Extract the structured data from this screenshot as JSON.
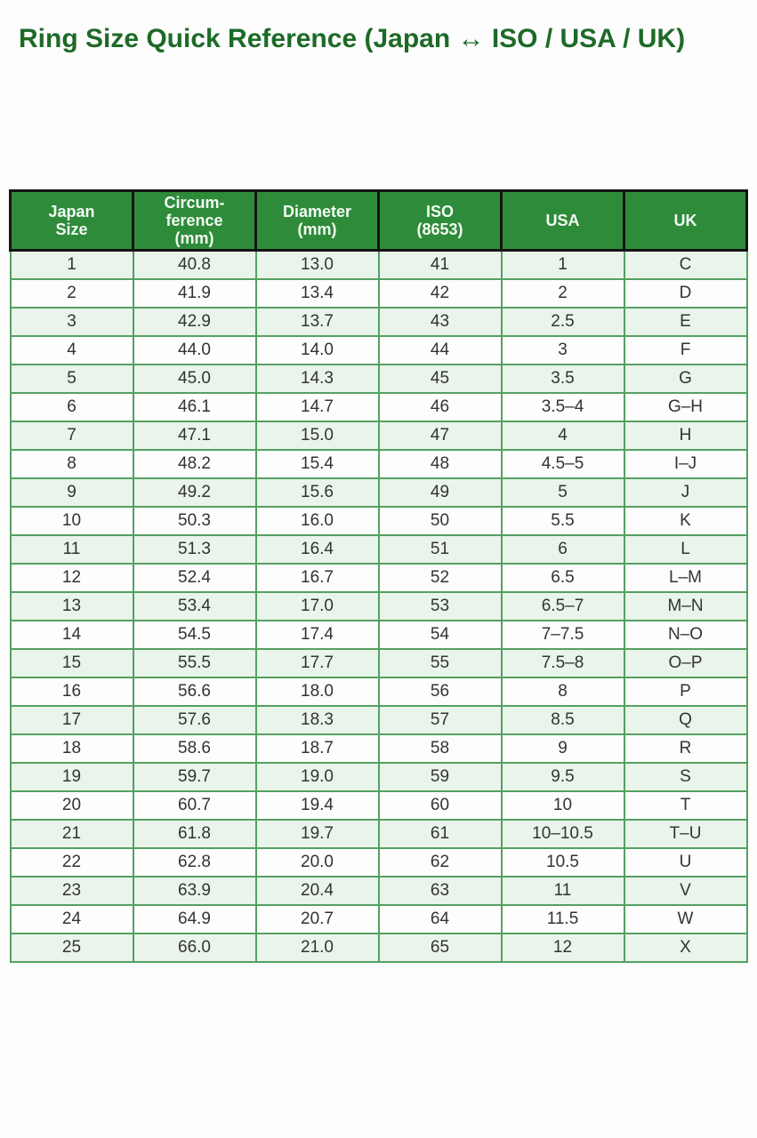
{
  "page": {
    "title": "Ring Size Quick Reference (Japan ↔ ISO / USA / UK)"
  },
  "colors": {
    "title_text": "#1d6a27",
    "header_bg": "#2e8b3a",
    "header_text": "#f3faf3",
    "header_border": "#141414",
    "row_alt_bg": "#e9f4ea",
    "row_bg": "#fdfdfd",
    "body_border": "#55a061",
    "cell_text": "#333333",
    "page_bg": "#fdfdfd"
  },
  "chart_data": {
    "type": "table",
    "title": "Ring Size Quick Reference (Japan ↔ ISO / USA / UK)",
    "columns": [
      "Japan Size",
      "Circumference (mm)",
      "Diameter (mm)",
      "ISO (8653)",
      "USA",
      "UK"
    ],
    "header_display": [
      "Japan\nSize",
      "Circum-\nference\n(mm)",
      "Diameter\n(mm)",
      "ISO\n(8653)",
      "USA",
      "UK"
    ],
    "rows": [
      [
        "1",
        "40.8",
        "13.0",
        "41",
        "1",
        "C"
      ],
      [
        "2",
        "41.9",
        "13.4",
        "42",
        "2",
        "D"
      ],
      [
        "3",
        "42.9",
        "13.7",
        "43",
        "2.5",
        "E"
      ],
      [
        "4",
        "44.0",
        "14.0",
        "44",
        "3",
        "F"
      ],
      [
        "5",
        "45.0",
        "14.3",
        "45",
        "3.5",
        "G"
      ],
      [
        "6",
        "46.1",
        "14.7",
        "46",
        "3.5–4",
        "G–H"
      ],
      [
        "7",
        "47.1",
        "15.0",
        "47",
        "4",
        "H"
      ],
      [
        "8",
        "48.2",
        "15.4",
        "48",
        "4.5–5",
        "I–J"
      ],
      [
        "9",
        "49.2",
        "15.6",
        "49",
        "5",
        "J"
      ],
      [
        "10",
        "50.3",
        "16.0",
        "50",
        "5.5",
        "K"
      ],
      [
        "11",
        "51.3",
        "16.4",
        "51",
        "6",
        "L"
      ],
      [
        "12",
        "52.4",
        "16.7",
        "52",
        "6.5",
        "L–M"
      ],
      [
        "13",
        "53.4",
        "17.0",
        "53",
        "6.5–7",
        "M–N"
      ],
      [
        "14",
        "54.5",
        "17.4",
        "54",
        "7–7.5",
        "N–O"
      ],
      [
        "15",
        "55.5",
        "17.7",
        "55",
        "7.5–8",
        "O–P"
      ],
      [
        "16",
        "56.6",
        "18.0",
        "56",
        "8",
        "P"
      ],
      [
        "17",
        "57.6",
        "18.3",
        "57",
        "8.5",
        "Q"
      ],
      [
        "18",
        "58.6",
        "18.7",
        "58",
        "9",
        "R"
      ],
      [
        "19",
        "59.7",
        "19.0",
        "59",
        "9.5",
        "S"
      ],
      [
        "20",
        "60.7",
        "19.4",
        "60",
        "10",
        "T"
      ],
      [
        "21",
        "61.8",
        "19.7",
        "61",
        "10–10.5",
        "T–U"
      ],
      [
        "22",
        "62.8",
        "20.0",
        "62",
        "10.5",
        "U"
      ],
      [
        "23",
        "63.9",
        "20.4",
        "63",
        "11",
        "V"
      ],
      [
        "24",
        "64.9",
        "20.7",
        "64",
        "11.5",
        "W"
      ],
      [
        "25",
        "66.0",
        "21.0",
        "65",
        "12",
        "X"
      ]
    ]
  }
}
